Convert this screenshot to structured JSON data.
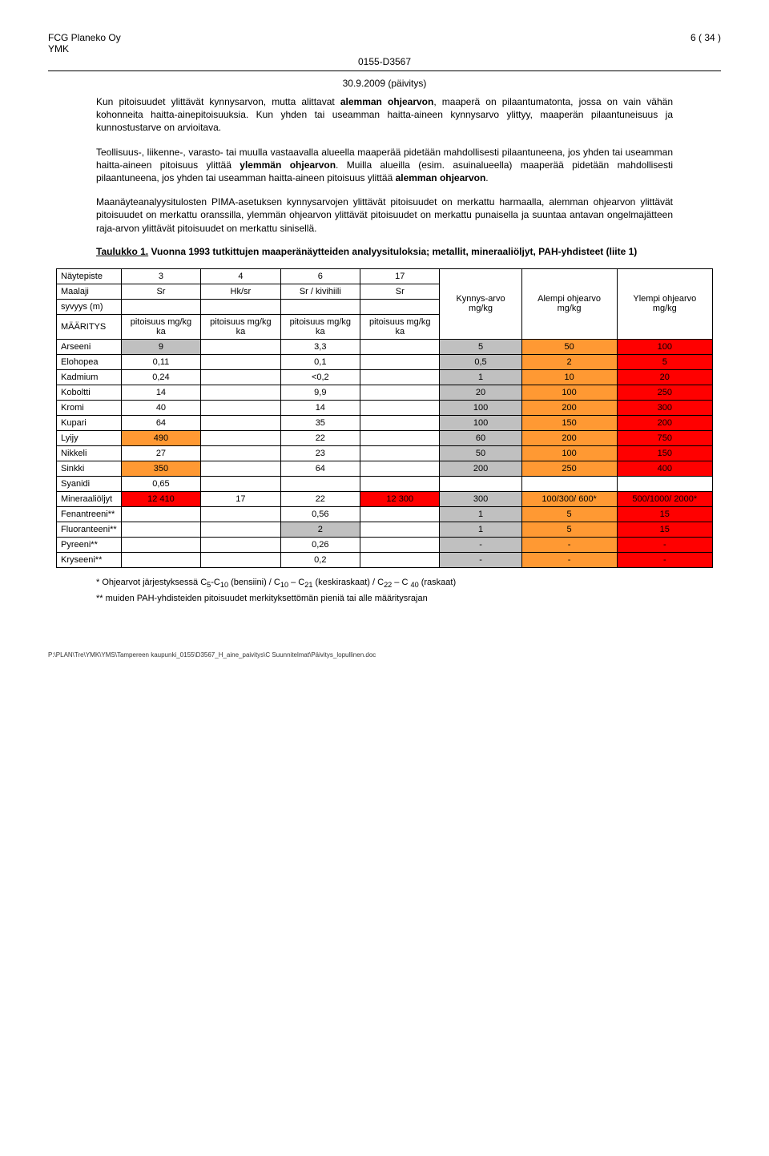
{
  "header": {
    "company": "FCG Planeko Oy",
    "ymk": "YMK",
    "page": "6 ( 34 )",
    "docnum": "0155-D3567",
    "date": "30.9.2009 (päivitys)"
  },
  "paragraphs": {
    "p1a": "Kun pitoisuudet ylittävät kynnysarvon, mutta alittavat ",
    "p1b": "alemman ohjearvon",
    "p1c": ", maaperä on pilaantumatonta, jossa on vain vähän kohonneita haitta-ainepitoisuuksia. Kun yhden tai useamman haitta-aineen kynnysarvo ylittyy, maaperän pilaantuneisuus ja kunnostustarve on arvioitava.",
    "p2a": "Teollisuus-, liikenne-, varasto- tai muulla vastaavalla alueella maaperää pidetään mahdollisesti pilaantuneena, jos yhden tai useamman haitta-aineen pitoisuus ylittää ",
    "p2b": "ylemmän ohjearvon",
    "p2c": ". Muilla alueilla (esim. asuinalueella) maaperää pidetään mahdollisesti pilaantuneena, jos yhden tai useamman haitta-aineen pitoisuus ylittää ",
    "p2d": "alemman ohjearvon",
    "p2e": ".",
    "p3": "Maanäyteanalyysitulosten PIMA-asetuksen kynnysarvojen ylittävät pitoisuudet on merkattu harmaalla, alemman ohjearvon ylittävät pitoisuudet on merkattu oranssilla, ylemmän ohjearvon ylittävät pitoisuudet on merkattu punaisella ja suuntaa antavan ongelmajätteen raja-arvon ylittävät pitoisuudet on merkattu sinisellä."
  },
  "tableTitle": {
    "label": "Taulukko 1.",
    "rest": " Vuonna 1993 tutkittujen maaperänäytteiden analyysituloksia; metallit, mineraaliöljyt, PAH-yhdisteet (liite 1)"
  },
  "colors": {
    "grey": "#c0c0c0",
    "orange": "#ff9933",
    "red": "#ff0000",
    "white": "#ffffff"
  },
  "table": {
    "head": {
      "naytepiste": "Näytepiste",
      "cols": [
        "3",
        "4",
        "6",
        "17"
      ],
      "kynnys": "Kynnys-arvo mg/kg",
      "alempi": "Alempi ohjearvo mg/kg",
      "ylempi": "Ylempi ohjearvo mg/kg",
      "maalaji": "Maalaji",
      "maalaji_vals": [
        "Sr",
        "Hk/sr",
        "Sr / kivihiili",
        "Sr"
      ],
      "syvyys": "syvyys (m)",
      "maaritys": "MÄÄRITYS",
      "pit_unit": "pitoisuus mg/kg ka"
    },
    "rows": [
      {
        "n": "Arseeni",
        "v": [
          "9",
          "",
          "3,3",
          ""
        ],
        "c": [
          "grey",
          "",
          "",
          ""
        ],
        "k": "5",
        "a": "50",
        "y": "100",
        "kc": "grey",
        "ac": "orange",
        "yc": "red"
      },
      {
        "n": "Elohopea",
        "v": [
          "0,11",
          "",
          "0,1",
          ""
        ],
        "c": [
          "",
          "",
          "",
          ""
        ],
        "k": "0,5",
        "a": "2",
        "y": "5",
        "kc": "grey",
        "ac": "orange",
        "yc": "red"
      },
      {
        "n": "Kadmium",
        "v": [
          "0,24",
          "",
          "<0,2",
          ""
        ],
        "c": [
          "",
          "",
          "",
          ""
        ],
        "k": "1",
        "a": "10",
        "y": "20",
        "kc": "grey",
        "ac": "orange",
        "yc": "red"
      },
      {
        "n": "Koboltti",
        "v": [
          "14",
          "",
          "9,9",
          ""
        ],
        "c": [
          "",
          "",
          "",
          ""
        ],
        "k": "20",
        "a": "100",
        "y": "250",
        "kc": "grey",
        "ac": "orange",
        "yc": "red"
      },
      {
        "n": "Kromi",
        "v": [
          "40",
          "",
          "14",
          ""
        ],
        "c": [
          "",
          "",
          "",
          ""
        ],
        "k": "100",
        "a": "200",
        "y": "300",
        "kc": "grey",
        "ac": "orange",
        "yc": "red"
      },
      {
        "n": "Kupari",
        "v": [
          "64",
          "",
          "35",
          ""
        ],
        "c": [
          "",
          "",
          "",
          ""
        ],
        "k": "100",
        "a": "150",
        "y": "200",
        "kc": "grey",
        "ac": "orange",
        "yc": "red"
      },
      {
        "n": "Lyijy",
        "v": [
          "490",
          "",
          "22",
          ""
        ],
        "c": [
          "orange",
          "",
          "",
          ""
        ],
        "k": "60",
        "a": "200",
        "y": "750",
        "kc": "grey",
        "ac": "orange",
        "yc": "red"
      },
      {
        "n": "Nikkeli",
        "v": [
          "27",
          "",
          "23",
          ""
        ],
        "c": [
          "",
          "",
          "",
          ""
        ],
        "k": "50",
        "a": "100",
        "y": "150",
        "kc": "grey",
        "ac": "orange",
        "yc": "red"
      },
      {
        "n": "Sinkki",
        "v": [
          "350",
          "",
          "64",
          ""
        ],
        "c": [
          "orange",
          "",
          "",
          ""
        ],
        "k": "200",
        "a": "250",
        "y": "400",
        "kc": "grey",
        "ac": "orange",
        "yc": "red"
      },
      {
        "n": "Syanidi",
        "v": [
          "0,65",
          "",
          "",
          ""
        ],
        "c": [
          "",
          "",
          "",
          ""
        ],
        "k": "",
        "a": "",
        "y": "",
        "kc": "",
        "ac": "",
        "yc": ""
      },
      {
        "n": "Mineraaliöljyt",
        "v": [
          "12 410",
          "17",
          "22",
          "12 300"
        ],
        "c": [
          "red",
          "",
          "",
          "red"
        ],
        "k": "300",
        "a": "100/300/ 600*",
        "y": "500/1000/ 2000*",
        "kc": "grey",
        "ac": "orange",
        "yc": "red"
      },
      {
        "n": "Fenantreeni**",
        "v": [
          "",
          "",
          "0,56",
          ""
        ],
        "c": [
          "",
          "",
          "",
          ""
        ],
        "k": "1",
        "a": "5",
        "y": "15",
        "kc": "grey",
        "ac": "orange",
        "yc": "red"
      },
      {
        "n": "Fluoranteeni**",
        "v": [
          "",
          "",
          "2",
          ""
        ],
        "c": [
          "",
          "",
          "grey",
          ""
        ],
        "k": "1",
        "a": "5",
        "y": "15",
        "kc": "grey",
        "ac": "orange",
        "yc": "red"
      },
      {
        "n": "Pyreeni**",
        "v": [
          "",
          "",
          "0,26",
          ""
        ],
        "c": [
          "",
          "",
          "",
          ""
        ],
        "k": "-",
        "a": "-",
        "y": "-",
        "kc": "grey",
        "ac": "orange",
        "yc": "red"
      },
      {
        "n": "Kryseeni**",
        "v": [
          "",
          "",
          "0,2",
          ""
        ],
        "c": [
          "",
          "",
          "",
          ""
        ],
        "k": "-",
        "a": "-",
        "y": "-",
        "kc": "grey",
        "ac": "orange",
        "yc": "red"
      }
    ]
  },
  "footnotes": {
    "f1a": "* Ohjearvot järjestyksessä C",
    "f1b": "5",
    "f1c": "-C",
    "f1d": "10",
    "f1e": " (bensiini) / C",
    "f1f": "10",
    "f1g": " – C",
    "f1h": "21",
    "f1i": " (keskiraskaat) / C",
    "f1j": "22",
    "f1k": " – C ",
    "f1l": "40",
    "f1m": " (raskaat)",
    "f2": "** muiden PAH-yhdisteiden pitoisuudet merkityksettömän pieniä tai alle määritysrajan"
  },
  "footerPath": "P:\\PLAN\\Tre\\YMK\\YMS\\Tampereen kaupunki_0155\\D3567_H_aine_paivitys\\C Suunnitelmat\\Päivitys_lopullinen.doc"
}
